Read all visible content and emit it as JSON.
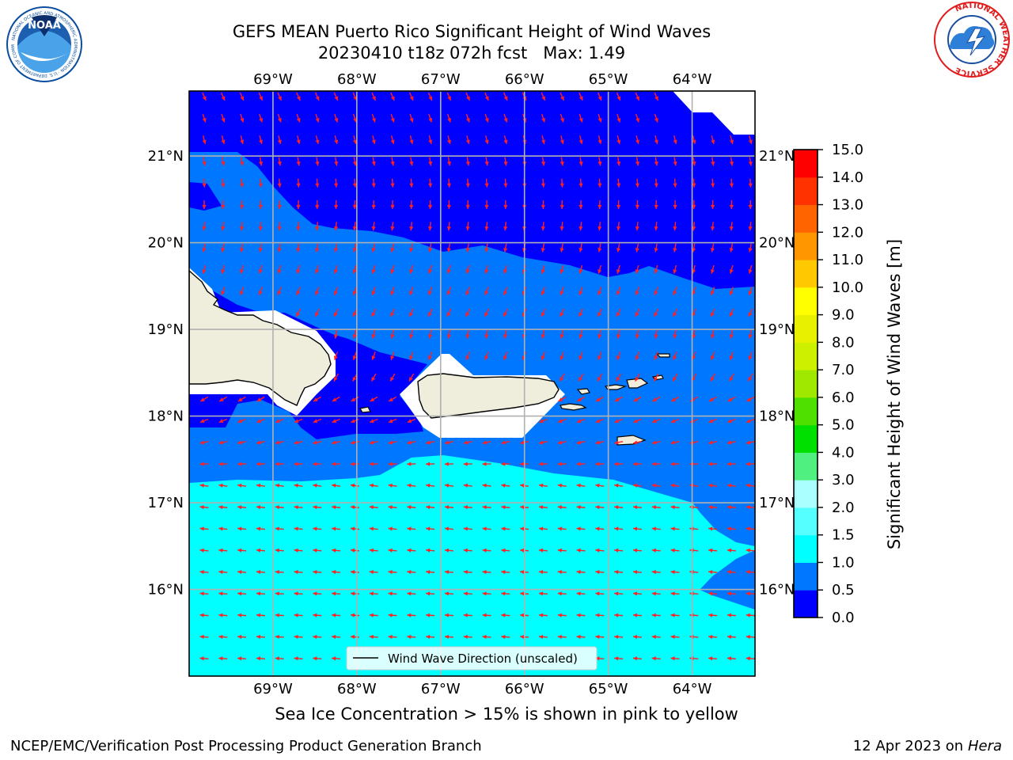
{
  "header": {
    "title_line1": "GEFS MEAN Puerto Rico Significant Height of Wind Waves",
    "title_line2": "20230410 t18z 072h fcst   Max: 1.49",
    "noaa_logo_text": "NOAA",
    "noaa_ring_text": "NATIONAL OCEANIC AND ATMOSPHERIC ADMINISTRATION · U.S. DEPARTMENT OF COMMERCE",
    "nws_ring_text": "NATIONAL WEATHER SERVICE"
  },
  "map": {
    "lon_range": [
      -70,
      -63.25
    ],
    "lat_range": [
      15.0,
      21.75
    ],
    "lon_ticks": [
      "69°W",
      "68°W",
      "67°W",
      "66°W",
      "65°W",
      "64°W"
    ],
    "lat_ticks": [
      "21°N",
      "20°N",
      "19°N",
      "18°N",
      "17°N",
      "16°N"
    ],
    "grid": true,
    "land_color": "#efeedc",
    "arrow_color": "#ff2020",
    "legend_label": "Wind Wave Direction (unscaled)",
    "legend_position": "lower-center",
    "dominant_direction": "southwesterly-to-westward"
  },
  "colorbar": {
    "title": "Significant Height of Wind Waves [m]",
    "tick_labels": [
      "0.0",
      "0.5",
      "1.0",
      "1.5",
      "2.0",
      "3.0",
      "4.0",
      "5.0",
      "6.0",
      "7.0",
      "8.0",
      "9.0",
      "10.0",
      "11.0",
      "12.0",
      "13.0",
      "14.0",
      "15.0"
    ],
    "colors": [
      "#0000ff",
      "#0077ff",
      "#00ffff",
      "#55ffff",
      "#aaffff",
      "#50f080",
      "#00e000",
      "#50e000",
      "#a0e800",
      "#ccf000",
      "#e8f000",
      "#ffff00",
      "#ffc800",
      "#ff9600",
      "#ff6400",
      "#ff3200",
      "#ff0000"
    ]
  },
  "footer": {
    "caption": "Sea Ice Concentration > 15% is shown in pink to yellow",
    "credit": "NCEP/EMC/Verification Post Processing Product Generation Branch",
    "date": "12 Apr 2023 on ",
    "machine": "Hera"
  }
}
